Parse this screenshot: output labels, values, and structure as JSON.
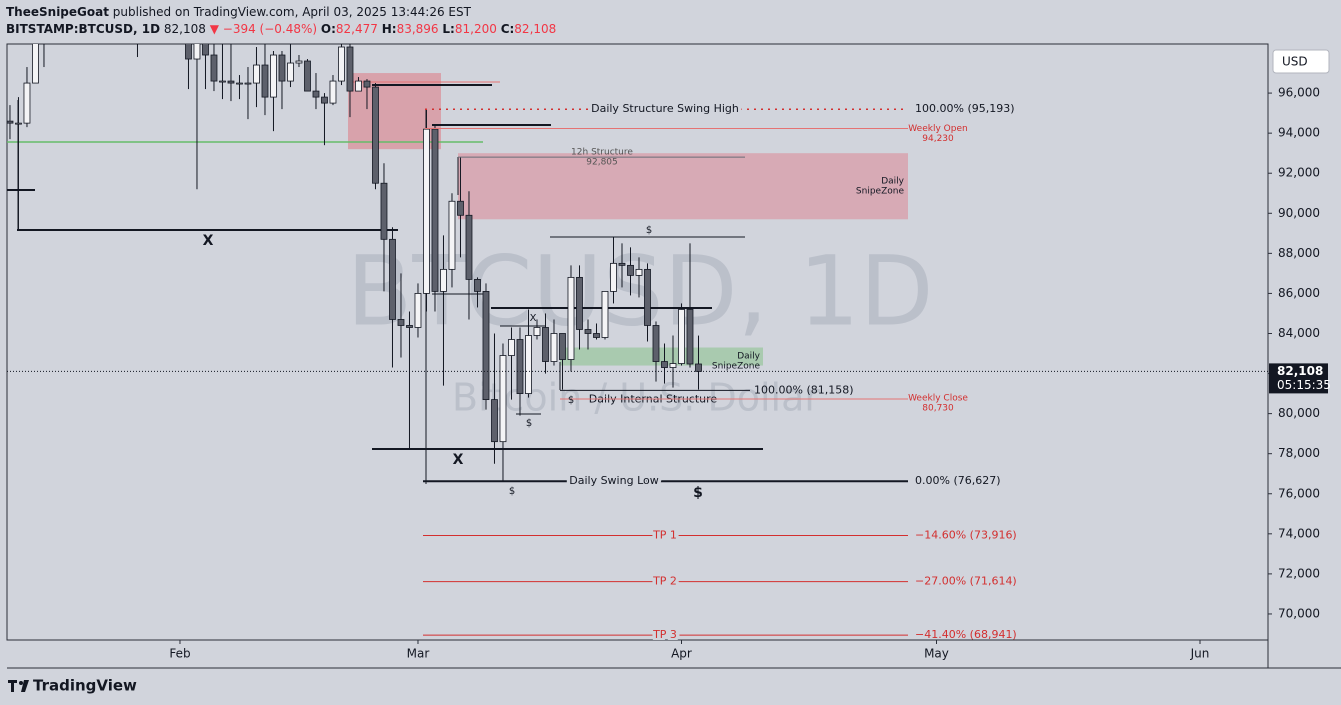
{
  "header": {
    "publisher": "TheeSnipeGoat",
    "published": "published on TradingView.com, April 03, 2025 13:44:26 EST",
    "symbol": "BITSTAMP:BTCUSD, 1D",
    "price": "82,108",
    "change": "▼ −394 (−0.48%)",
    "o_label": "O:",
    "o": "82,477",
    "h_label": "H:",
    "h": "83,896",
    "l_label": "L:",
    "l": "81,200",
    "c_label": "C:",
    "c": "82,108"
  },
  "chart_data": {
    "type": "candlestick",
    "watermark": "BTCUSD, 1D",
    "watermark_sub": "Bitcoin / U.S. Dollar",
    "currency": "USD",
    "up_color": "#f4f4f6",
    "down_color": "#5d606b",
    "wick_color": "#131722",
    "open": [
      94600,
      94500,
      94500,
      96500,
      100500,
      100000,
      104400,
      104500,
      101100,
      102000,
      106100,
      103600,
      103900,
      104800,
      104700,
      102600,
      102100,
      101300,
      103700,
      104700,
      102400,
      100600,
      97700,
      101400,
      97900,
      96600,
      96600,
      96500,
      96500,
      96500,
      97400,
      95800,
      97900,
      96600,
      97500,
      97600,
      96100,
      95800,
      95500,
      96600,
      98300,
      96100,
      96600,
      96300,
      91500,
      88700,
      84700,
      84400,
      84300,
      86000,
      94200,
      86100,
      87200,
      90600,
      89900,
      86700,
      86100,
      80700,
      78600,
      82900,
      83700,
      81000,
      83900,
      84300,
      82600,
      84000,
      82700,
      86800,
      84200,
      84000,
      83800,
      86100,
      87500,
      87400,
      86900,
      87200,
      84400,
      82600,
      82300,
      82500,
      85200,
      82477
    ],
    "high": [
      95400,
      95800,
      97300,
      100700,
      100800,
      105800,
      104900,
      106300,
      109600,
      107000,
      106300,
      106800,
      107100,
      105300,
      105500,
      103200,
      103800,
      104800,
      106400,
      106000,
      102800,
      101500,
      102400,
      101700,
      99000,
      99200,
      100100,
      96900,
      97300,
      98300,
      98500,
      98100,
      98100,
      98800,
      97900,
      97700,
      97000,
      96000,
      96900,
      98800,
      99500,
      96800,
      96700,
      96500,
      92500,
      89300,
      87000,
      85100,
      86500,
      95200,
      94400,
      88900,
      91000,
      92800,
      91100,
      86800,
      86500,
      84000,
      83500,
      84300,
      84300,
      85200,
      84700,
      85000,
      84700,
      84000,
      87400,
      87400,
      84700,
      84500,
      86100,
      88800,
      88500,
      88300,
      87800,
      87500,
      84600,
      83500,
      83900,
      85500,
      88500,
      83896
    ],
    "low": [
      93700,
      89200,
      94300,
      96500,
      97300,
      100000,
      102300,
      99600,
      99500,
      100100,
      103300,
      101200,
      102800,
      104100,
      102500,
      97800,
      100300,
      101300,
      103300,
      101600,
      100300,
      96200,
      91200,
      96200,
      96100,
      95700,
      95600,
      95700,
      94700,
      95300,
      94900,
      94100,
      95200,
      96300,
      97300,
      96100,
      95200,
      93400,
      95400,
      96400,
      94800,
      96100,
      95200,
      91200,
      86100,
      82300,
      82800,
      78200,
      83800,
      85100,
      85100,
      81400,
      86300,
      87800,
      84700,
      85300,
      80200,
      77500,
      76600,
      80700,
      79900,
      80800,
      83700,
      82000,
      82400,
      81200,
      82100,
      83200,
      83200,
      83700,
      83700,
      85500,
      86300,
      85900,
      85800,
      83600,
      81600,
      81500,
      81300,
      82400,
      82300,
      81200
    ],
    "close": [
      94500,
      94500,
      96500,
      100500,
      100000,
      104400,
      104500,
      101100,
      102000,
      106100,
      103600,
      103900,
      104800,
      104700,
      102600,
      102100,
      101300,
      103700,
      104700,
      102400,
      100600,
      97700,
      101400,
      97900,
      96600,
      96600,
      96500,
      96500,
      96500,
      97400,
      95800,
      97900,
      96600,
      97500,
      97600,
      96100,
      95800,
      95500,
      96600,
      98300,
      96100,
      96600,
      96300,
      91500,
      88700,
      84700,
      84400,
      84300,
      86000,
      94200,
      86100,
      87200,
      90600,
      89900,
      86700,
      86100,
      80700,
      78600,
      82900,
      83700,
      81000,
      83900,
      84300,
      82600,
      84000,
      82700,
      86800,
      84200,
      84000,
      83800,
      86100,
      87500,
      87400,
      86900,
      87200,
      84400,
      82600,
      82300,
      82500,
      85200,
      82477,
      82108
    ],
    "xlim": [
      -0.35,
      148
    ],
    "xticks": [
      {
        "value": 20,
        "label": "Feb"
      },
      {
        "value": 48,
        "label": "Mar"
      },
      {
        "value": 79,
        "label": "Apr"
      },
      {
        "value": 109,
        "label": "May"
      },
      {
        "value": 140,
        "label": "Jun"
      }
    ],
    "ylim": [
      68700,
      98450
    ],
    "yticks": [
      {
        "value": 70000,
        "label": "70,000"
      },
      {
        "value": 72000,
        "label": "72,000"
      },
      {
        "value": 74000,
        "label": "74,000"
      },
      {
        "value": 76000,
        "label": "76,000"
      },
      {
        "value": 78000,
        "label": "78,000"
      },
      {
        "value": 80000,
        "label": "80,000"
      },
      {
        "value": 82000,
        "label": "82,000"
      },
      {
        "value": 84000,
        "label": "84,000"
      },
      {
        "value": 86000,
        "label": "86,000"
      },
      {
        "value": 88000,
        "label": "88,000"
      },
      {
        "value": 90000,
        "label": "90,000"
      },
      {
        "value": 92000,
        "label": "92,000"
      },
      {
        "value": 94000,
        "label": "94,000"
      },
      {
        "value": 96000,
        "label": "96,000"
      }
    ],
    "grid": false,
    "last_price": {
      "value": 82108,
      "label": "82,108"
    },
    "countdown": "05:15:35",
    "levels": [
      {
        "name": "Daily Structure Swing High",
        "value": 95193,
        "label": "100.00% (95,193)"
      },
      {
        "name": "Weekly Open",
        "value": 94230,
        "label": "94,230"
      },
      {
        "name": "12h Structure",
        "value": 92805,
        "label": "92,805"
      },
      {
        "name": "Daily Internal Structure",
        "value": 81158,
        "label": "100.00% (81,158)"
      },
      {
        "name": "Weekly Close",
        "value": 80730,
        "label": "80,730"
      },
      {
        "name": "Daily Swing Low",
        "value": 76627,
        "label": "0.00% (76,627)"
      },
      {
        "name": "TP 1",
        "value": 73916,
        "label": "−14.60% (73,916)"
      },
      {
        "name": "TP 2",
        "value": 71614,
        "label": "−27.00% (71,614)"
      },
      {
        "name": "TP 3",
        "value": 68941,
        "label": "−41.40% (68,941)"
      }
    ],
    "zones": [
      {
        "from": 93200,
        "to": 97000,
        "color": "rgba(222,120,132,0.55)"
      },
      {
        "name_lines": [
          "Daily",
          "SnipeZone"
        ],
        "from": 89700,
        "to": 93000,
        "color": "rgba(222,120,132,0.45)"
      },
      {
        "name_lines": [
          "Daily",
          "SnipeZone"
        ],
        "from": 82400,
        "to": 83300,
        "color": "rgba(120,190,120,0.45)"
      }
    ],
    "symbols": [
      "X",
      "X",
      "X",
      "$",
      "$",
      "$",
      "$",
      "$"
    ]
  },
  "footer": {
    "brand": "TradingView"
  }
}
